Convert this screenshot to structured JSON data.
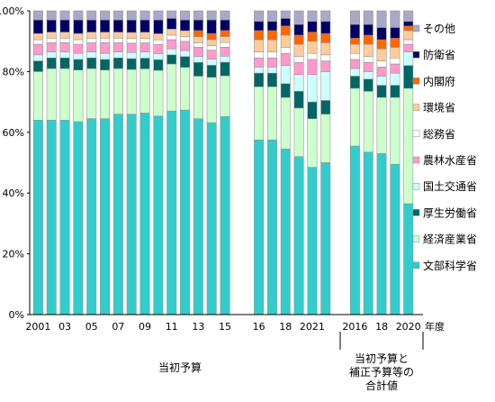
{
  "chart_data": {
    "type": "bar",
    "stacked": true,
    "ylim": [
      0,
      100
    ],
    "yticks": [
      "0%",
      "20%",
      "40%",
      "60%",
      "80%",
      "100%"
    ],
    "y_unit": "%",
    "xlabel": "年度",
    "grid": false,
    "legend_position": "right",
    "groups": [
      {
        "label": "当初予算",
        "categories": [
          "2001",
          "2002",
          "2003",
          "2004",
          "2005",
          "2006",
          "2007",
          "2008",
          "2009",
          "2010",
          "2011",
          "2012",
          "2013",
          "2014",
          "2015"
        ],
        "tick_labels": [
          "2001",
          "03",
          "05",
          "07",
          "09",
          "11",
          "13",
          "15"
        ]
      },
      {
        "label": "",
        "categories": [
          "2016",
          "2017",
          "2018",
          "2019",
          "2020",
          "2021"
        ],
        "tick_labels": [
          "16",
          "18",
          "2021"
        ]
      },
      {
        "label": "当初予算と\n補正予算等の\n合計値",
        "categories": [
          "2016",
          "2017",
          "2018",
          "2019",
          "2020"
        ],
        "tick_labels": [
          "2016",
          "18",
          "2020"
        ]
      }
    ],
    "series": [
      {
        "name": "文部科学省",
        "color": "#33cccc",
        "values": [
          64,
          64,
          64,
          63.5,
          64.5,
          64.5,
          66,
          65,
          66,
          65,
          67,
          67,
          64.5,
          63.5,
          65.5,
          57.5,
          57.5,
          54.5,
          52,
          48.5,
          50,
          55.5,
          53.5,
          53,
          49.5,
          36.5
        ]
      },
      {
        "name": "経済産業省",
        "color": "#ccffcc",
        "values": [
          16,
          17,
          17,
          17,
          16.5,
          16,
          15,
          14.5,
          14.5,
          15,
          15.5,
          14,
          14,
          15,
          13.5,
          17.5,
          17.5,
          17,
          16,
          16,
          16,
          19,
          20,
          18.5,
          22,
          38
        ]
      },
      {
        "name": "厚生労働省",
        "color": "#006666",
        "values": [
          3.5,
          3.5,
          3.5,
          3.5,
          3.5,
          3.5,
          3.5,
          3.5,
          3.5,
          3.5,
          3,
          3.5,
          4.5,
          4,
          4.5,
          4.5,
          4.5,
          4.5,
          5.5,
          5.5,
          4.5,
          4,
          4,
          4,
          4,
          7.5
        ]
      },
      {
        "name": "国土交通省",
        "color": "#ccffff",
        "values": [
          2,
          2,
          2,
          2,
          2,
          2,
          2,
          2,
          2,
          2,
          2,
          2,
          2,
          2,
          2,
          2,
          2,
          6,
          5.5,
          9,
          9.5,
          2.5,
          2.5,
          3,
          4,
          4.5
        ]
      },
      {
        "name": "農林水産省",
        "color": "#ff99cc",
        "values": [
          3.5,
          3,
          3,
          3,
          3,
          3.5,
          3,
          3,
          3,
          3,
          3,
          3,
          3,
          3,
          3,
          3,
          3,
          4,
          4,
          5,
          3.5,
          3,
          3,
          3,
          3,
          2.5
        ]
      },
      {
        "name": "総務省",
        "color": "#ffffff",
        "values": [
          1.5,
          1.5,
          1.5,
          1.5,
          1.5,
          1.5,
          1.5,
          1.5,
          1.5,
          1.5,
          1.5,
          1.5,
          1.5,
          1.5,
          1.5,
          2,
          2,
          2,
          2,
          2,
          2,
          2,
          2,
          2,
          2,
          1.5
        ]
      },
      {
        "name": "環境省",
        "color": "#ffcc99",
        "values": [
          2,
          2,
          2,
          2,
          2,
          2,
          2,
          2,
          2,
          2,
          2,
          2,
          2,
          2,
          2,
          4,
          4,
          4,
          4,
          4,
          4,
          3,
          4,
          4,
          3.5,
          3
        ]
      },
      {
        "name": "内閣府",
        "color": "#ff6600",
        "values": [
          0,
          0,
          0,
          0,
          0,
          0,
          0,
          0,
          0,
          0,
          0,
          0,
          2,
          2,
          2,
          3,
          3,
          3,
          3,
          3,
          3,
          2,
          3,
          3,
          3,
          1.5
        ]
      },
      {
        "name": "防衛省",
        "color": "#000066",
        "values": [
          4.5,
          4,
          4,
          4.5,
          4,
          4,
          4,
          4,
          4,
          4.5,
          3.5,
          3.5,
          3.5,
          4.5,
          3.5,
          3,
          3,
          2.5,
          3.5,
          3.5,
          4,
          4.5,
          3.5,
          4,
          3.5,
          1.5
        ]
      },
      {
        "name": "その他",
        "color": "#a8a8c8",
        "values": [
          3,
          3,
          3,
          3,
          3,
          3,
          3,
          3,
          3,
          3,
          2.5,
          3,
          3,
          3,
          3,
          3.5,
          3.5,
          2.5,
          4.5,
          3.5,
          3.5,
          4.5,
          4.5,
          5.5,
          5.5,
          3.5
        ]
      }
    ]
  }
}
